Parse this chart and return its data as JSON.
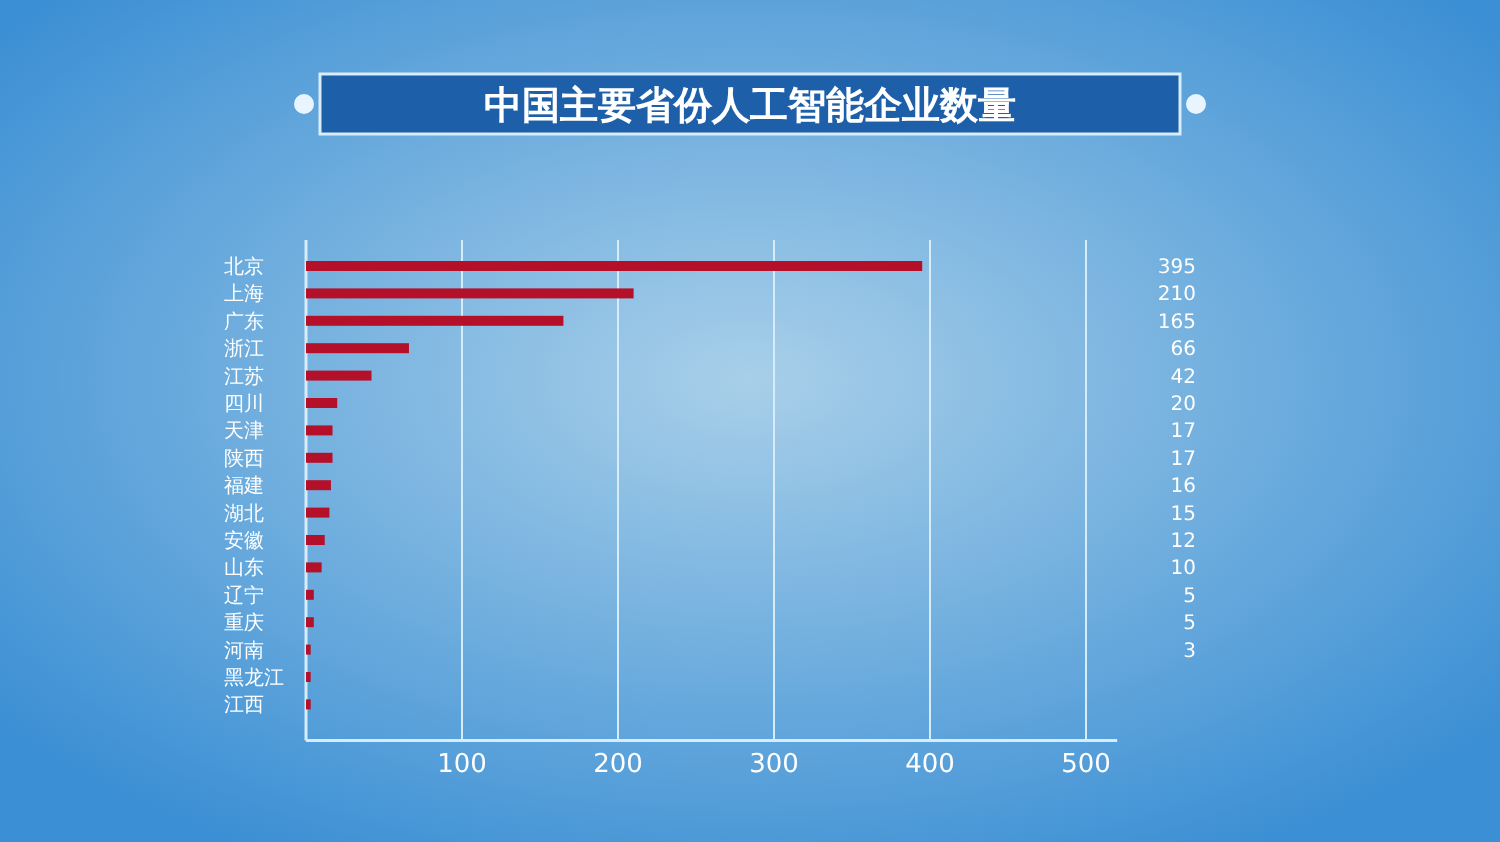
{
  "chart_data": {
    "type": "bar",
    "orientation": "horizontal",
    "title": "中国主要省份人工智能企业数量",
    "categories": [
      "北京",
      "上海",
      "广东",
      "浙江",
      "江苏",
      "四川",
      "天津",
      "陕西",
      "福建",
      "湖北",
      "安徽",
      "山东",
      "辽宁",
      "重庆",
      "河南",
      "黑龙江",
      "江西"
    ],
    "values": [
      395,
      210,
      165,
      66,
      42,
      20,
      17,
      17,
      16,
      15,
      12,
      10,
      5,
      5,
      3,
      3,
      3
    ],
    "value_labels": [
      "395",
      "210",
      "165",
      "66",
      "42",
      "20",
      "17",
      "17",
      "16",
      "15",
      "12",
      "10",
      "5",
      "5",
      "3",
      null,
      null
    ],
    "color": "#b5102a",
    "xlim": [
      0,
      520
    ],
    "xticks": [
      100,
      200,
      300,
      400,
      500
    ],
    "grid": "x"
  }
}
